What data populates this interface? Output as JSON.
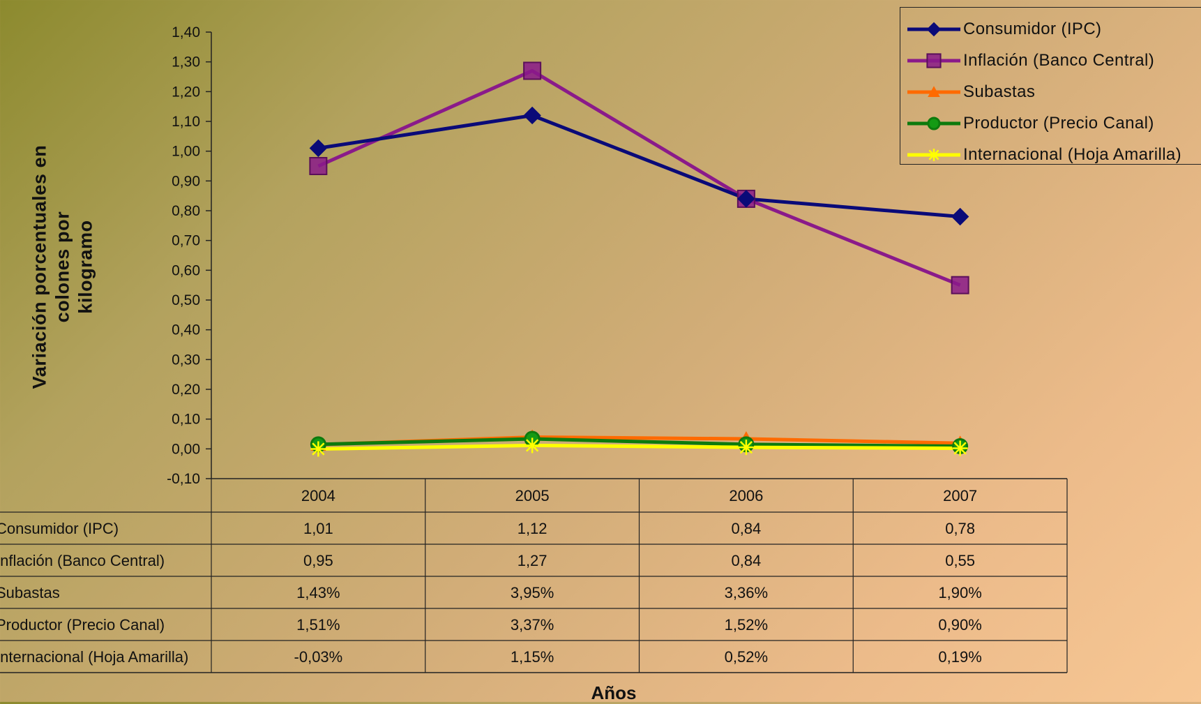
{
  "chart_data": {
    "type": "line",
    "ylabel": "Variación porcentuales en colones por kilogramo",
    "ylabel_lines": [
      "Variación porcentuales en colones por",
      "kilogramo"
    ],
    "xlabel": "Años",
    "categories": [
      "2004",
      "2005",
      "2006",
      "2007"
    ],
    "ylim": [
      -0.1,
      1.4
    ],
    "yticks": [
      "-0,10",
      "0,00",
      "0,10",
      "0,20",
      "0,30",
      "0,40",
      "0,50",
      "0,60",
      "0,70",
      "0,80",
      "0,90",
      "1,00",
      "1,10",
      "1,20",
      "1,30",
      "1,40"
    ],
    "legend_position": "top-right",
    "series": [
      {
        "name": "Consumidor (IPC)",
        "color": "#0a0a78",
        "marker": "diamond",
        "values": [
          1.01,
          1.12,
          0.84,
          0.78
        ],
        "table_values": [
          "1,01",
          "1,12",
          "0,84",
          "0,78"
        ]
      },
      {
        "name": "Inflación (Banco Central)",
        "color": "#8a1a8a",
        "marker": "square",
        "values": [
          0.95,
          1.27,
          0.84,
          0.55
        ],
        "table_values": [
          "0,95",
          "1,27",
          "0,84",
          "0,55"
        ]
      },
      {
        "name": "Subastas",
        "color": "#ff6a00",
        "marker": "triangle",
        "values": [
          0.0143,
          0.0395,
          0.0336,
          0.019
        ],
        "table_values": [
          "1,43%",
          "3,95%",
          "3,36%",
          "1,90%"
        ]
      },
      {
        "name": "Productor (Precio Canal)",
        "color": "#0d7a0d",
        "marker": "circle",
        "values": [
          0.0151,
          0.0337,
          0.0152,
          0.009
        ],
        "table_values": [
          "1,51%",
          "3,37%",
          "1,52%",
          "0,90%"
        ]
      },
      {
        "name": "Internacional (Hoja Amarilla)",
        "color": "#ffff00",
        "marker": "star",
        "values": [
          -0.0003,
          0.0115,
          0.0052,
          0.0019
        ],
        "table_values": [
          "-0,03%",
          "1,15%",
          "0,52%",
          "0,19%"
        ]
      }
    ]
  }
}
